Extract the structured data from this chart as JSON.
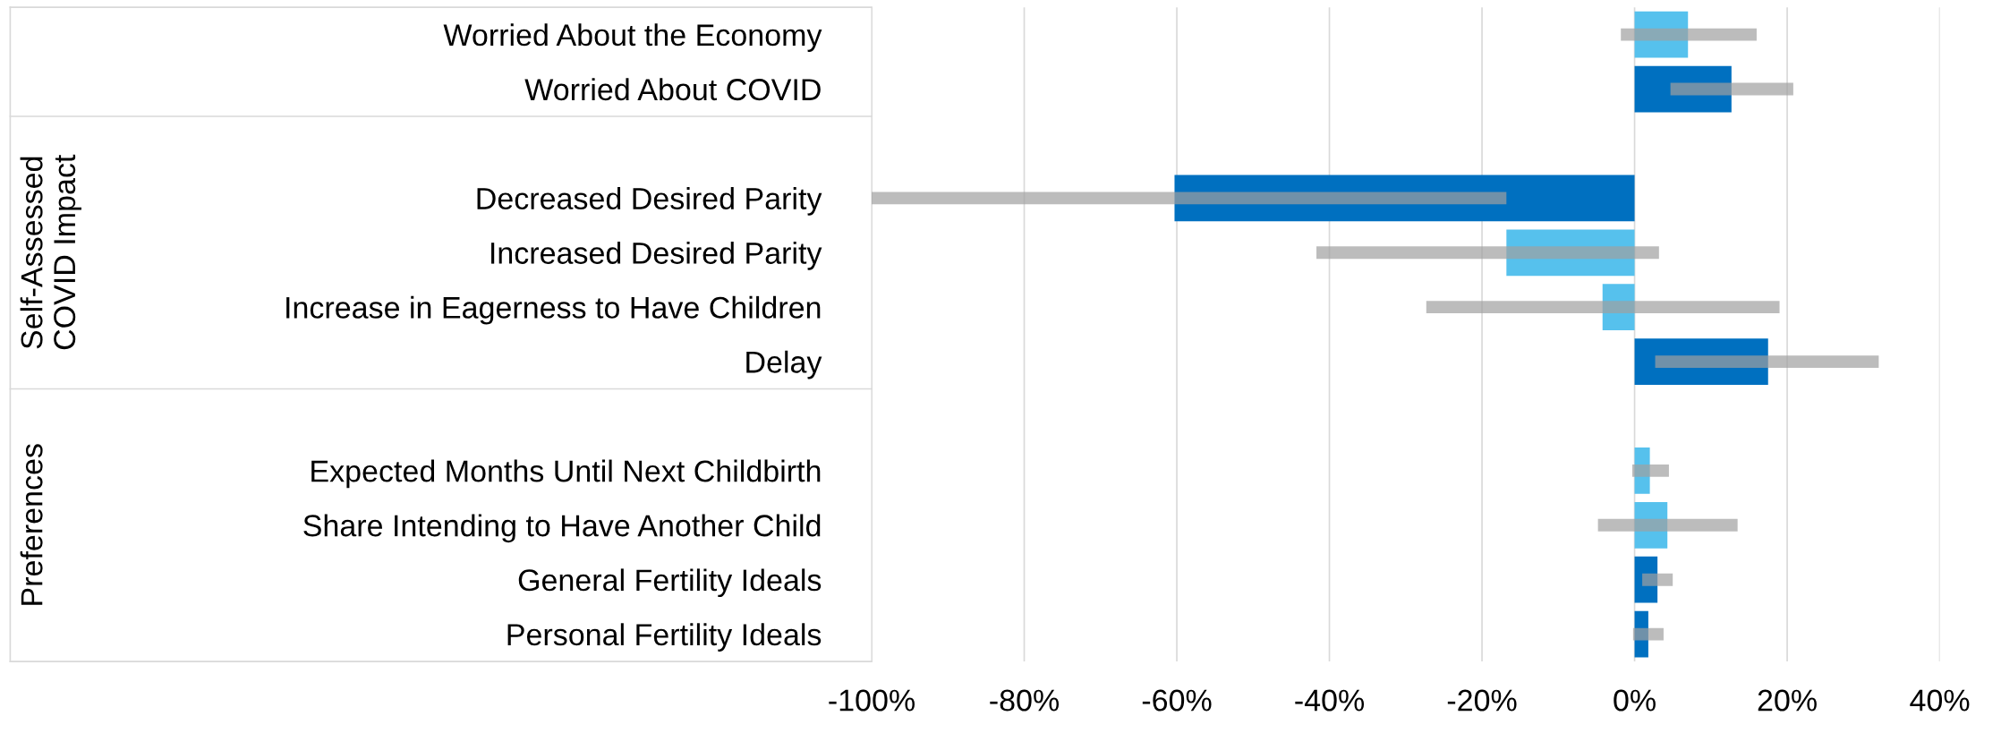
{
  "chart_data": {
    "type": "bar",
    "orientation": "horizontal",
    "categories": [
      "Worried About the Economy",
      "Worried About COVID",
      null,
      "Decreased Desired Parity",
      "Increased Desired Parity",
      "Increase in Eagerness to Have Children",
      "Delay",
      null,
      "Expected Months Until Next Childbirth",
      "Share Intending to Have Another Child",
      "General Fertility Ideals",
      "Personal Fertility Ideals"
    ],
    "values": [
      7,
      12.7,
      null,
      -60.3,
      -16.8,
      -4.2,
      17.5,
      null,
      2,
      4.3,
      3,
      1.8
    ],
    "errors": [
      [
        -1.8,
        16
      ],
      [
        4.7,
        20.8
      ],
      null,
      [
        -100,
        -16.8
      ],
      [
        -41.7,
        3.2
      ],
      [
        -27.3,
        19
      ],
      [
        2.7,
        32
      ],
      null,
      [
        -0.3,
        4.5
      ],
      [
        -4.8,
        13.5
      ],
      [
        1,
        5
      ],
      [
        -0.2,
        3.8
      ]
    ],
    "colors": [
      "#56c1ed",
      "#0070c0",
      null,
      "#0070c0",
      "#56c1ed",
      "#56c1ed",
      "#0070c0",
      null,
      "#56c1ed",
      "#56c1ed",
      "#0070c0",
      "#0070c0"
    ],
    "xlim": [
      -100,
      40
    ],
    "xticks": [
      {
        "value": -100,
        "label": "-100%"
      },
      {
        "value": -80,
        "label": "-80%"
      },
      {
        "value": -60,
        "label": "-60%"
      },
      {
        "value": -40,
        "label": "-40%"
      },
      {
        "value": -20,
        "label": "-20%"
      },
      {
        "value": 0,
        "label": "0%"
      },
      {
        "value": 20,
        "label": "20%"
      },
      {
        "value": 40,
        "label": "40%"
      }
    ],
    "grid": "x",
    "annotations": [
      "Self-Assessed\nCOVID Impact",
      "Preferences"
    ]
  }
}
